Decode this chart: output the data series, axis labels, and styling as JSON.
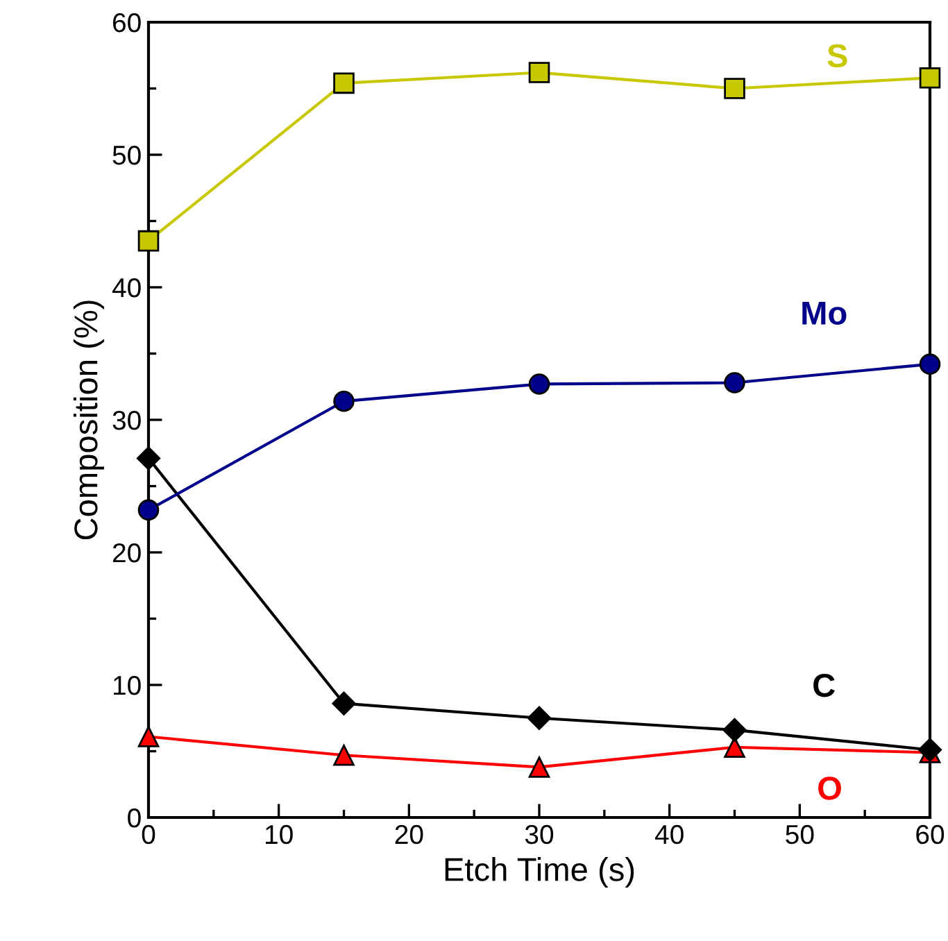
{
  "chart_data": {
    "type": "line",
    "xlabel": "Etch Time (s)",
    "ylabel": "Composition (%)",
    "x": [
      0,
      15,
      30,
      45,
      60
    ],
    "series": [
      {
        "name": "S",
        "color": "#c8c800",
        "marker": "square",
        "values": [
          43.5,
          55.4,
          56.2,
          55.0,
          55.8
        ]
      },
      {
        "name": "Mo",
        "color": "#00008b",
        "marker": "circle",
        "values": [
          23.2,
          31.4,
          32.7,
          32.8,
          34.2
        ]
      },
      {
        "name": "C",
        "color": "#000000",
        "marker": "diamond",
        "values": [
          27.1,
          8.6,
          7.5,
          6.6,
          5.1
        ]
      },
      {
        "name": "O",
        "color": "#ff0000",
        "marker": "triangle",
        "values": [
          6.1,
          4.7,
          3.8,
          5.3,
          4.9
        ]
      }
    ],
    "xlim": [
      0,
      60
    ],
    "xticks": [
      0,
      10,
      20,
      30,
      40,
      50,
      60
    ],
    "ylim": [
      0,
      60
    ],
    "yticks": [
      0,
      10,
      20,
      30,
      40,
      50,
      60
    ],
    "grid": false,
    "legend": false,
    "line_style": "solid"
  }
}
